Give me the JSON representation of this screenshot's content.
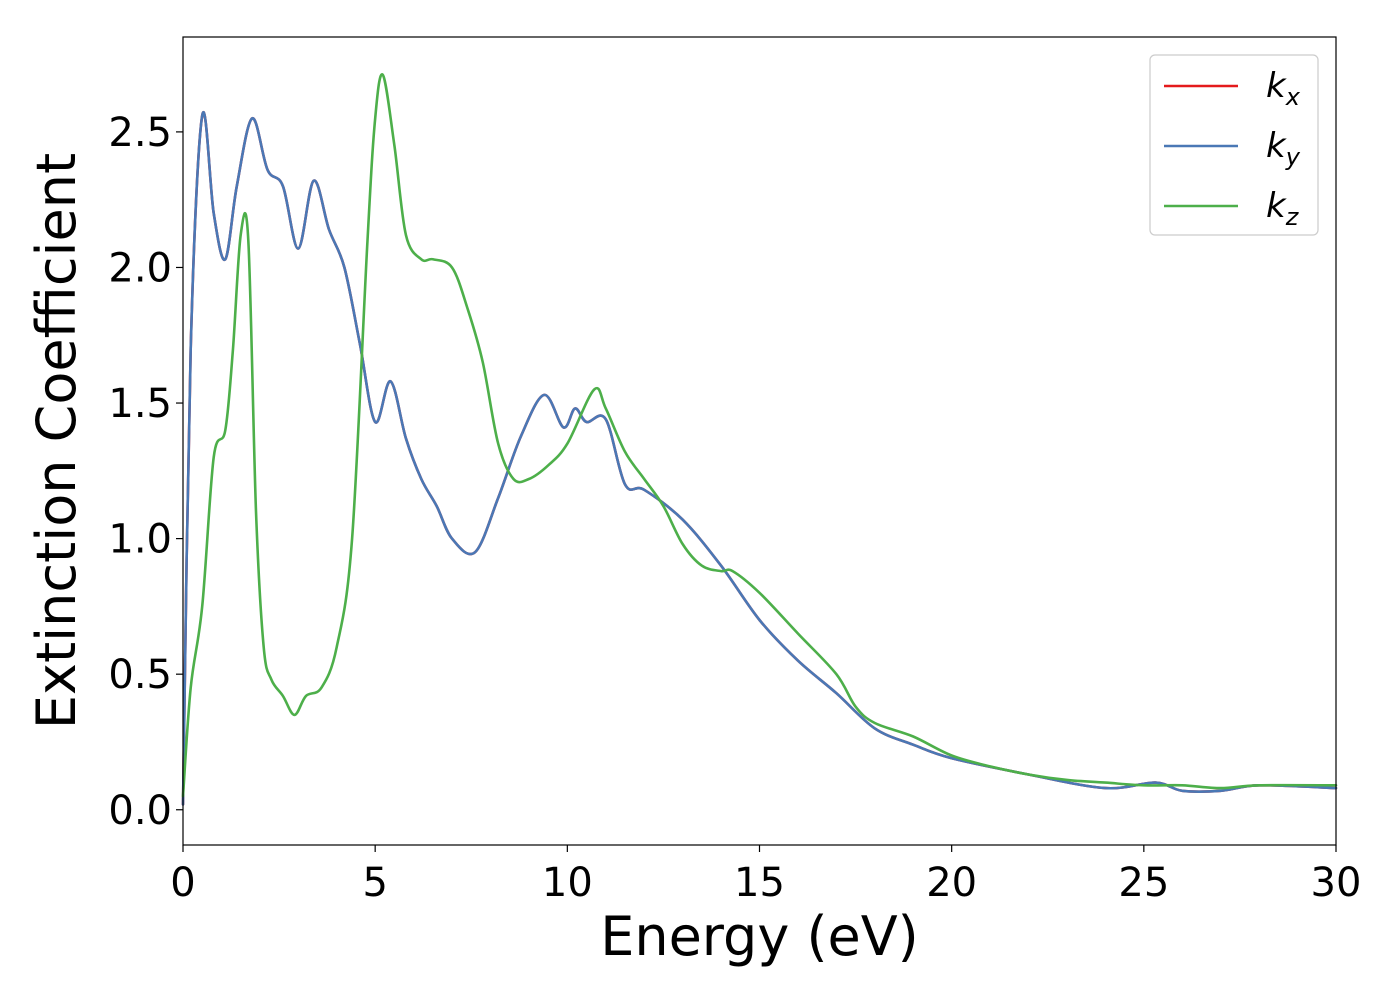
{
  "chart_data": {
    "type": "line",
    "title": "",
    "xlabel": "Energy (eV)",
    "ylabel": "Extinction Coefficient",
    "xlim": [
      0,
      30
    ],
    "ylim": [
      -0.13,
      2.85
    ],
    "xticks": [
      0,
      5,
      10,
      15,
      20,
      25,
      30
    ],
    "xtick_labels": [
      "0",
      "5",
      "10",
      "15",
      "20",
      "25",
      "30"
    ],
    "yticks": [
      0.0,
      0.5,
      1.0,
      1.5,
      2.0,
      2.5
    ],
    "ytick_labels": [
      "0.0",
      "0.5",
      "1.0",
      "1.5",
      "2.0",
      "2.5"
    ],
    "grid": false,
    "legend_position": "top-right",
    "series": [
      {
        "name": "k_x",
        "legend_main": "k",
        "legend_sub": "x",
        "color": "#e41a1c",
        "x": [
          0,
          0.2,
          0.5,
          0.8,
          1.1,
          1.4,
          1.8,
          2.2,
          2.6,
          3.0,
          3.4,
          3.8,
          4.2,
          4.6,
          5.0,
          5.4,
          5.8,
          6.2,
          6.6,
          7.0,
          7.6,
          8.2,
          8.8,
          9.4,
          9.9,
          10.2,
          10.5,
          11.0,
          11.5,
          12.0,
          13.0,
          14.0,
          15.0,
          16.0,
          17.0,
          18.0,
          19.0,
          20.0,
          22.0,
          24.0,
          25.3,
          26.0,
          27.0,
          28.0,
          30.0
        ],
        "y": [
          0.02,
          1.7,
          2.56,
          2.2,
          2.03,
          2.3,
          2.55,
          2.36,
          2.3,
          2.07,
          2.32,
          2.14,
          2.0,
          1.72,
          1.43,
          1.58,
          1.37,
          1.22,
          1.12,
          1.0,
          0.95,
          1.15,
          1.38,
          1.53,
          1.41,
          1.48,
          1.43,
          1.44,
          1.2,
          1.18,
          1.07,
          0.9,
          0.7,
          0.55,
          0.43,
          0.3,
          0.24,
          0.19,
          0.13,
          0.08,
          0.1,
          0.07,
          0.07,
          0.09,
          0.08
        ]
      },
      {
        "name": "k_y",
        "legend_main": "k",
        "legend_sub": "y",
        "color": "#4a78b5",
        "x": [
          0,
          0.2,
          0.5,
          0.8,
          1.1,
          1.4,
          1.8,
          2.2,
          2.6,
          3.0,
          3.4,
          3.8,
          4.2,
          4.6,
          5.0,
          5.4,
          5.8,
          6.2,
          6.6,
          7.0,
          7.6,
          8.2,
          8.8,
          9.4,
          9.9,
          10.2,
          10.5,
          11.0,
          11.5,
          12.0,
          13.0,
          14.0,
          15.0,
          16.0,
          17.0,
          18.0,
          19.0,
          20.0,
          22.0,
          24.0,
          25.3,
          26.0,
          27.0,
          28.0,
          30.0
        ],
        "y": [
          0.02,
          1.7,
          2.56,
          2.2,
          2.03,
          2.3,
          2.55,
          2.36,
          2.3,
          2.07,
          2.32,
          2.14,
          2.0,
          1.72,
          1.43,
          1.58,
          1.37,
          1.22,
          1.12,
          1.0,
          0.95,
          1.15,
          1.38,
          1.53,
          1.41,
          1.48,
          1.43,
          1.44,
          1.2,
          1.18,
          1.07,
          0.9,
          0.7,
          0.55,
          0.43,
          0.3,
          0.24,
          0.19,
          0.13,
          0.08,
          0.1,
          0.07,
          0.07,
          0.09,
          0.08
        ]
      },
      {
        "name": "k_z",
        "legend_main": "k",
        "legend_sub": "z",
        "color": "#4daf4a",
        "x": [
          0,
          0.2,
          0.5,
          0.8,
          1.1,
          1.3,
          1.5,
          1.7,
          1.9,
          2.1,
          2.3,
          2.6,
          2.9,
          3.2,
          3.6,
          4.0,
          4.4,
          4.8,
          5.0,
          5.2,
          5.5,
          5.8,
          6.2,
          6.5,
          7.0,
          7.4,
          7.8,
          8.2,
          8.6,
          9.0,
          9.5,
          10.0,
          10.7,
          11.0,
          11.5,
          12.0,
          12.5,
          13.0,
          13.5,
          14.0,
          14.3,
          15.0,
          16.0,
          17.0,
          17.5,
          18.0,
          19.0,
          20.0,
          21.0,
          22.0,
          23.0,
          24.0,
          25.0,
          26.0,
          27.0,
          28.0,
          30.0
        ],
        "y": [
          0.05,
          0.45,
          0.75,
          1.3,
          1.4,
          1.7,
          2.12,
          2.1,
          1.1,
          0.6,
          0.48,
          0.42,
          0.35,
          0.42,
          0.45,
          0.6,
          1.0,
          2.1,
          2.55,
          2.71,
          2.45,
          2.12,
          2.03,
          2.03,
          2.0,
          1.85,
          1.65,
          1.35,
          1.22,
          1.22,
          1.27,
          1.35,
          1.55,
          1.48,
          1.32,
          1.22,
          1.12,
          0.98,
          0.9,
          0.88,
          0.88,
          0.8,
          0.65,
          0.5,
          0.38,
          0.32,
          0.27,
          0.2,
          0.16,
          0.13,
          0.11,
          0.1,
          0.09,
          0.09,
          0.08,
          0.09,
          0.09
        ]
      }
    ]
  }
}
